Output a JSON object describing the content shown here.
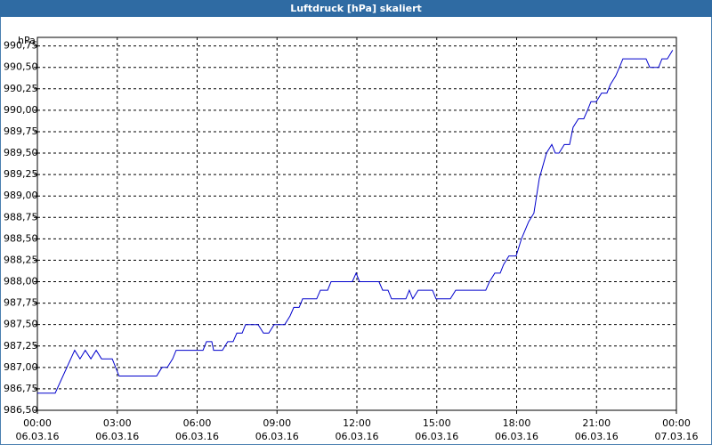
{
  "chart_data": {
    "type": "line",
    "title": "Luftdruck [hPa] skaliert",
    "y_unit": "hPa",
    "x": [
      0,
      0.67,
      1.4,
      1.6,
      1.8,
      2.01,
      2.21,
      2.41,
      2.81,
      3.07,
      4.48,
      4.68,
      4.88,
      5.08,
      5.21,
      6.22,
      6.35,
      6.55,
      6.62,
      6.95,
      7.15,
      7.35,
      7.49,
      7.69,
      7.82,
      8.29,
      8.49,
      8.69,
      8.89,
      9.29,
      9.49,
      9.63,
      9.83,
      9.96,
      10.49,
      10.63,
      10.9,
      11.03,
      11.83,
      11.97,
      12.1,
      12.83,
      12.97,
      13.17,
      13.3,
      13.84,
      13.97,
      14.1,
      14.3,
      14.84,
      14.97,
      15.51,
      15.71,
      16.84,
      16.98,
      17.18,
      17.38,
      17.51,
      17.71,
      17.98,
      18.18,
      18.45,
      18.65,
      18.85,
      19.12,
      19.32,
      19.45,
      19.59,
      19.79,
      19.99,
      20.12,
      20.32,
      20.52,
      20.66,
      20.79,
      20.99,
      21.19,
      21.39,
      21.52,
      21.72,
      21.86,
      21.99,
      22.86,
      23.0,
      23.33,
      23.46,
      23.66,
      23.86
    ],
    "series": [
      {
        "name": "Luftdruck",
        "color": "#0000cc",
        "values": [
          986.7,
          986.7,
          987.2,
          987.1,
          987.2,
          987.1,
          987.2,
          987.1,
          987.1,
          986.9,
          986.9,
          987.0,
          987.0,
          987.1,
          987.2,
          987.2,
          987.3,
          987.3,
          987.2,
          987.2,
          987.3,
          987.3,
          987.4,
          987.4,
          987.5,
          987.5,
          987.4,
          987.4,
          987.5,
          987.5,
          987.6,
          987.7,
          987.7,
          987.8,
          987.8,
          987.9,
          987.9,
          988.0,
          988.0,
          988.1,
          988.0,
          988.0,
          987.9,
          987.9,
          987.8,
          987.8,
          987.9,
          987.8,
          987.9,
          987.9,
          987.8,
          987.8,
          987.9,
          987.9,
          988.0,
          988.1,
          988.1,
          988.2,
          988.3,
          988.3,
          988.5,
          988.7,
          988.8,
          989.2,
          989.5,
          989.6,
          989.5,
          989.5,
          989.6,
          989.6,
          989.8,
          989.9,
          989.9,
          990.0,
          990.1,
          990.1,
          990.2,
          990.2,
          990.3,
          990.4,
          990.5,
          990.6,
          990.6,
          990.5,
          990.5,
          990.6,
          990.6,
          990.7
        ]
      }
    ],
    "xlim": [
      0,
      24
    ],
    "xticks": [
      {
        "value": 0,
        "label": "00:00"
      },
      {
        "value": 3,
        "label": "03:00"
      },
      {
        "value": 6,
        "label": "06:00"
      },
      {
        "value": 9,
        "label": "09:00"
      },
      {
        "value": 12,
        "label": "12:00"
      },
      {
        "value": 15,
        "label": "15:00"
      },
      {
        "value": 18,
        "label": "18:00"
      },
      {
        "value": 21,
        "label": "21:00"
      },
      {
        "value": 24,
        "label": "00:00"
      }
    ],
    "xtick_dates": [
      "06.03.16",
      "06.03.16",
      "06.03.16",
      "06.03.16",
      "06.03.16",
      "06.03.16",
      "06.03.16",
      "06.03.16",
      "07.03.16"
    ],
    "ylim": [
      986.5,
      990.85
    ],
    "yticks": [
      {
        "value": 986.5,
        "label": "986,50"
      },
      {
        "value": 986.75,
        "label": "986,75"
      },
      {
        "value": 987,
        "label": "987,00"
      },
      {
        "value": 987.25,
        "label": "987,25"
      },
      {
        "value": 987.5,
        "label": "987,50"
      },
      {
        "value": 987.75,
        "label": "987,75"
      },
      {
        "value": 988,
        "label": "988,00"
      },
      {
        "value": 988.25,
        "label": "988,25"
      },
      {
        "value": 988.5,
        "label": "988,50"
      },
      {
        "value": 988.75,
        "label": "988,75"
      },
      {
        "value": 989,
        "label": "989,00"
      },
      {
        "value": 989.25,
        "label": "989,25"
      },
      {
        "value": 989.5,
        "label": "989,50"
      },
      {
        "value": 989.75,
        "label": "989,75"
      },
      {
        "value": 990,
        "label": "990,00"
      },
      {
        "value": 990.25,
        "label": "990,25"
      },
      {
        "value": 990.5,
        "label": "990,50"
      },
      {
        "value": 990.75,
        "label": "990,75"
      }
    ],
    "grid": true
  }
}
